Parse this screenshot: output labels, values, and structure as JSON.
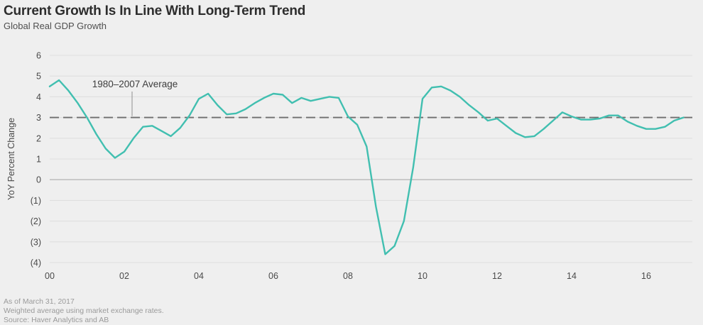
{
  "header": {
    "title": "Current Growth Is In Line With Long-Term Trend",
    "subtitle": "Global Real GDP Growth"
  },
  "footer": {
    "line1": "As of March 31, 2017",
    "line2": "Weighted average using market exchange rates.",
    "line3": "Source: Haver Analytics and AB"
  },
  "chart_data": {
    "type": "line",
    "title": "Current Growth Is In Line With Long-Term Trend",
    "subtitle": "Global Real GDP Growth",
    "xlabel": "",
    "ylabel": "YoY Percent Change",
    "xlim": [
      2000,
      2017.25
    ],
    "ylim": [
      -4,
      6
    ],
    "grid": "horizontal",
    "legend_position": "none",
    "x_ticks": [
      {
        "year": 2000,
        "label": "00"
      },
      {
        "year": 2002,
        "label": "02"
      },
      {
        "year": 2004,
        "label": "04"
      },
      {
        "year": 2006,
        "label": "06"
      },
      {
        "year": 2008,
        "label": "08"
      },
      {
        "year": 2010,
        "label": "10"
      },
      {
        "year": 2012,
        "label": "12"
      },
      {
        "year": 2014,
        "label": "14"
      },
      {
        "year": 2016,
        "label": "16"
      }
    ],
    "y_ticks": [
      {
        "value": 6,
        "label": "6"
      },
      {
        "value": 5,
        "label": "5"
      },
      {
        "value": 4,
        "label": "4"
      },
      {
        "value": 3,
        "label": "3"
      },
      {
        "value": 2,
        "label": "2"
      },
      {
        "value": 1,
        "label": "1"
      },
      {
        "value": 0,
        "label": "0"
      },
      {
        "value": -1,
        "label": "(1)"
      },
      {
        "value": -2,
        "label": "(2)"
      },
      {
        "value": -3,
        "label": "(3)"
      },
      {
        "value": -4,
        "label": "(4)"
      }
    ],
    "average_line": {
      "value": 3,
      "label": "1980–2007 Average"
    },
    "series": [
      {
        "name": "Global Real GDP Growth",
        "x": [
          2000.0,
          2000.25,
          2000.5,
          2000.75,
          2001.0,
          2001.25,
          2001.5,
          2001.75,
          2002.0,
          2002.25,
          2002.5,
          2002.75,
          2003.0,
          2003.25,
          2003.5,
          2003.75,
          2004.0,
          2004.25,
          2004.5,
          2004.75,
          2005.0,
          2005.25,
          2005.5,
          2005.75,
          2006.0,
          2006.25,
          2006.5,
          2006.75,
          2007.0,
          2007.25,
          2007.5,
          2007.75,
          2008.0,
          2008.25,
          2008.5,
          2008.75,
          2009.0,
          2009.25,
          2009.5,
          2009.75,
          2010.0,
          2010.25,
          2010.5,
          2010.75,
          2011.0,
          2011.25,
          2011.5,
          2011.75,
          2012.0,
          2012.25,
          2012.5,
          2012.75,
          2013.0,
          2013.25,
          2013.5,
          2013.75,
          2014.0,
          2014.25,
          2014.5,
          2014.75,
          2015.0,
          2015.25,
          2015.5,
          2015.75,
          2016.0,
          2016.25,
          2016.5,
          2016.75,
          2017.0
        ],
        "values": [
          4.5,
          4.8,
          4.3,
          3.7,
          3.0,
          2.2,
          1.5,
          1.05,
          1.35,
          2.0,
          2.55,
          2.6,
          2.35,
          2.1,
          2.5,
          3.1,
          3.9,
          4.15,
          3.6,
          3.15,
          3.2,
          3.4,
          3.7,
          3.95,
          4.15,
          4.1,
          3.7,
          3.95,
          3.8,
          3.9,
          4.0,
          3.95,
          3.05,
          2.65,
          1.6,
          -1.3,
          -3.6,
          -3.2,
          -2.0,
          0.6,
          3.9,
          4.45,
          4.5,
          4.3,
          4.0,
          3.6,
          3.25,
          2.85,
          2.95,
          2.6,
          2.25,
          2.05,
          2.1,
          2.45,
          2.85,
          3.25,
          3.05,
          2.9,
          2.9,
          2.95,
          3.1,
          3.1,
          2.8,
          2.6,
          2.45,
          2.45,
          2.55,
          2.85,
          3.0
        ]
      }
    ],
    "colors": {
      "series": "#41bfb0",
      "grid": "#dfdfdf",
      "zero_line": "#c0c0c0",
      "average_line": "#6e6e6e",
      "axis_text": "#4a4a4a",
      "annotation_text": "#3d3d3d",
      "background": "#efefef"
    }
  }
}
